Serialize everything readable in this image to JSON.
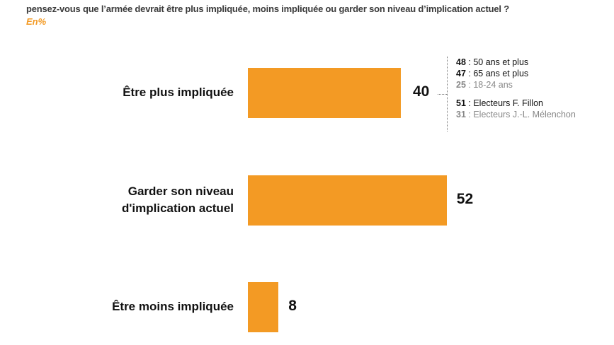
{
  "question": "pensez-vous que l’armée devrait être plus impliquée, moins impliquée ou garder son niveau d’implication actuel ?",
  "unit": "En%",
  "chart_data": {
    "type": "bar",
    "orientation": "horizontal",
    "categories": [
      "Être plus impliquée",
      "Garder son niveau d'implication actuel",
      "Être moins impliquée"
    ],
    "category_lines": [
      [
        "Être plus impliquée"
      ],
      [
        "Garder son niveau",
        "d'implication actuel"
      ],
      [
        "Être moins impliquée"
      ]
    ],
    "values": [
      40,
      52,
      8
    ],
    "value_labels": [
      "40",
      "52",
      "8"
    ],
    "color": "#f39a24",
    "annotations": [
      {
        "value": "48",
        "label": " : 50 ans et plus",
        "muted": false
      },
      {
        "value": "47",
        "label": " : 65 ans et plus",
        "muted": false
      },
      {
        "value": "25",
        "label": " : 18-24 ans",
        "muted": true
      },
      {
        "value": "51",
        "label": " : Electeurs F. Fillon",
        "muted": false
      },
      {
        "value": "31",
        "label": " : Electeurs J.-L. Mélenchon",
        "muted": true
      }
    ]
  }
}
